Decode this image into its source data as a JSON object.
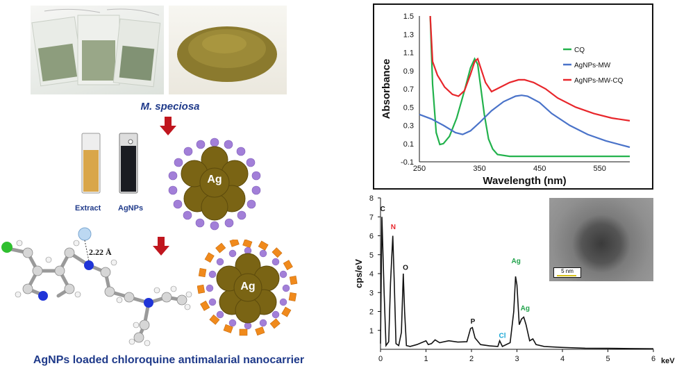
{
  "left": {
    "plant_caption": "M. speciosa",
    "vial_labels": [
      "Extract",
      "AgNPs"
    ],
    "core_label": "Ag",
    "core_label_2": "Ag",
    "bond_label": "2.22 Å",
    "footer_caption": "AgNPs loaded chloroquine antimalarial nanocarrier",
    "colors": {
      "arrow": "#c0161e",
      "silver_core": "#7a6414",
      "shell_dot": "#a27fd8",
      "drug": "#f08a1c",
      "caption": "#1f3a8a"
    }
  },
  "chart_data": [
    {
      "type": "line",
      "title": "",
      "xlabel": "Wavelength (nm)",
      "ylabel": "Absorbance",
      "xlim": [
        250,
        600
      ],
      "ylim": [
        -0.1,
        1.5
      ],
      "xticks": [
        "250",
        "350",
        "450",
        "550"
      ],
      "yticks": [
        "-0.1",
        "0.1",
        "0.3",
        "0.5",
        "0.7",
        "0.9",
        "1.1",
        "1.3",
        "1.5"
      ],
      "legend_position": "right",
      "series": [
        {
          "name": "CQ",
          "color": "#22b24c",
          "x": [
            268,
            272,
            278,
            284,
            290,
            300,
            312,
            325,
            335,
            342,
            347,
            352,
            358,
            365,
            372,
            380,
            400,
            450,
            500,
            550,
            600
          ],
          "y": [
            1.5,
            0.75,
            0.22,
            0.09,
            0.1,
            0.18,
            0.38,
            0.68,
            0.93,
            1.03,
            0.97,
            0.72,
            0.42,
            0.15,
            0.04,
            -0.02,
            -0.04,
            -0.04,
            -0.04,
            -0.04,
            -0.04
          ]
        },
        {
          "name": "AgNPs-MW",
          "color": "#4a73c9",
          "x": [
            250,
            270,
            290,
            310,
            322,
            335,
            350,
            370,
            390,
            410,
            420,
            430,
            450,
            470,
            500,
            530,
            560,
            600
          ],
          "y": [
            0.42,
            0.37,
            0.3,
            0.22,
            0.2,
            0.24,
            0.33,
            0.46,
            0.56,
            0.62,
            0.63,
            0.62,
            0.55,
            0.43,
            0.3,
            0.2,
            0.13,
            0.06
          ]
        },
        {
          "name": "AgNPs-MW-CQ",
          "color": "#e8262b",
          "x": [
            268,
            272,
            280,
            292,
            305,
            315,
            325,
            335,
            342,
            347,
            352,
            360,
            370,
            385,
            400,
            415,
            425,
            440,
            460,
            480,
            510,
            540,
            570,
            600
          ],
          "y": [
            1.5,
            1.0,
            0.85,
            0.72,
            0.64,
            0.62,
            0.68,
            0.86,
            1.0,
            1.03,
            0.93,
            0.77,
            0.67,
            0.72,
            0.77,
            0.8,
            0.8,
            0.77,
            0.7,
            0.6,
            0.5,
            0.43,
            0.38,
            0.35
          ]
        }
      ]
    },
    {
      "type": "line",
      "title": "",
      "xlabel": "keV",
      "ylabel": "cps/eV",
      "xlim": [
        0,
        6
      ],
      "ylim": [
        0,
        8
      ],
      "xticks": [
        "0",
        "1",
        "2",
        "3",
        "4",
        "5",
        "6"
      ],
      "yticks": [
        "1",
        "2",
        "3",
        "4",
        "5",
        "6",
        "7",
        "8"
      ],
      "peak_labels": [
        {
          "text": "C",
          "color": "#111111",
          "x": 0.05,
          "y": 7.3
        },
        {
          "text": "N",
          "color": "#e8262b",
          "x": 0.28,
          "y": 6.35
        },
        {
          "text": "O",
          "color": "#111111",
          "x": 0.55,
          "y": 4.2
        },
        {
          "text": "P",
          "color": "#111111",
          "x": 2.03,
          "y": 1.35
        },
        {
          "text": "Cl",
          "color": "#19a7d6",
          "x": 2.68,
          "y": 0.6
        },
        {
          "text": "Ag",
          "color": "#22a34c",
          "x": 2.98,
          "y": 4.55
        },
        {
          "text": "Ag",
          "color": "#22a34c",
          "x": 3.18,
          "y": 2.05
        }
      ],
      "inset_scale_label": "5 nm",
      "series": [
        {
          "name": "",
          "color": "#111111",
          "x": [
            0,
            0.03,
            0.08,
            0.12,
            0.18,
            0.22,
            0.27,
            0.3,
            0.34,
            0.4,
            0.46,
            0.5,
            0.53,
            0.57,
            0.65,
            0.8,
            1.0,
            1.05,
            1.12,
            1.2,
            1.3,
            1.5,
            1.7,
            1.9,
            1.98,
            2.02,
            2.08,
            2.2,
            2.4,
            2.58,
            2.62,
            2.68,
            2.85,
            2.93,
            2.97,
            3.0,
            3.05,
            3.1,
            3.15,
            3.2,
            3.28,
            3.35,
            3.42,
            3.6,
            4.0,
            4.5,
            5.0,
            5.5,
            6.0
          ],
          "y": [
            0.3,
            7.0,
            3.0,
            0.2,
            0.4,
            3.5,
            6.0,
            3.8,
            0.3,
            0.2,
            0.9,
            4.0,
            2.0,
            0.2,
            0.15,
            0.25,
            0.45,
            0.25,
            0.3,
            0.5,
            0.35,
            0.45,
            0.38,
            0.4,
            1.1,
            1.15,
            0.6,
            0.25,
            0.18,
            0.15,
            0.45,
            0.15,
            0.35,
            2.0,
            3.85,
            3.4,
            1.3,
            1.6,
            1.7,
            1.3,
            0.45,
            0.55,
            0.25,
            0.15,
            0.1,
            0.06,
            0.05,
            0.04,
            0.03
          ]
        }
      ]
    }
  ]
}
